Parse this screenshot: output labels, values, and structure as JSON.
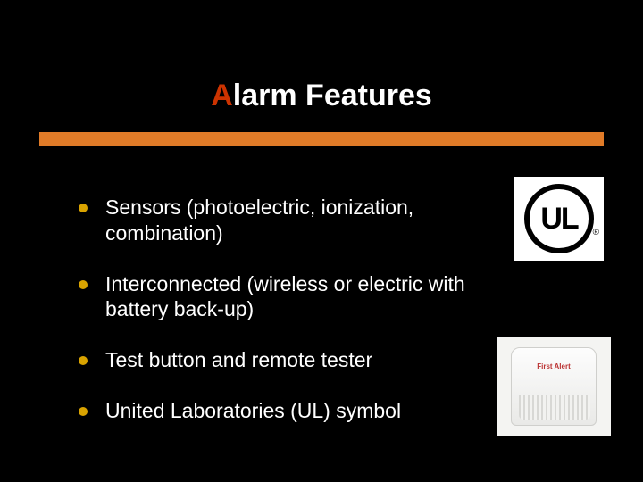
{
  "slide": {
    "background_color": "#000000",
    "title": {
      "accent_text": "A",
      "rest_text": "larm Features",
      "accent_color": "#cc3300",
      "text_color": "#ffffff",
      "underline_color": "#e07b28"
    },
    "bullets": {
      "dot_color": "#d9a300",
      "text_color": "#ffffff",
      "items": [
        "Sensors (photoelectric, ionization, combination)",
        "Interconnected (wireless or electric with battery back-up)",
        "Test button and remote tester",
        "United Laboratories (UL) symbol"
      ]
    },
    "images": {
      "ul_logo": {
        "text": "UL",
        "type": "certification-mark"
      },
      "smoke_alarm": {
        "brand_text": "First Alert",
        "type": "product-photo"
      }
    }
  }
}
